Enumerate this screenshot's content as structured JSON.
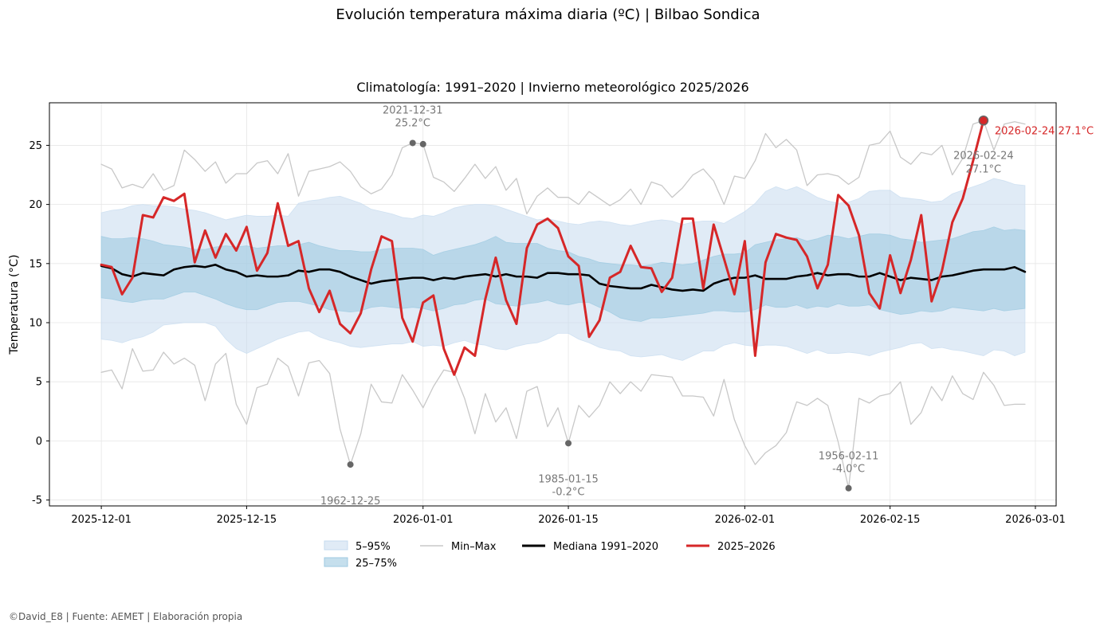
{
  "suptitle": "Evolución temperatura máxima diaria (ºC) | Bilbao Sondica",
  "footer": "©David_E8 | Fuente: AEMET | Elaboración propia",
  "colors": {
    "band_5_95": "#c6dbef",
    "band_25_75": "#9ecae1",
    "minmax": "#c8c8c8",
    "median": "#000000",
    "current": "#d62728",
    "record": "#666666",
    "record_text": "#777777"
  },
  "chart_data": {
    "type": "line",
    "title": "Climatología: 1991–2020 | Invierno meteorológico 2025/2026",
    "xlabel": "",
    "ylabel": "Temperatura (°C)",
    "x_start": "2025-12-01",
    "x_end": "2026-02-28",
    "xlim": [
      "2025-11-26",
      "2026-03-03"
    ],
    "ylim": [
      -5.5,
      28.6
    ],
    "yticks": [
      -5,
      0,
      5,
      10,
      15,
      20,
      25
    ],
    "xticks": [
      "2025-12-01",
      "2025-12-15",
      "2026-01-01",
      "2026-01-15",
      "2026-02-01",
      "2026-02-15",
      "2026-03-01"
    ],
    "grid": true,
    "legend_position": "bottom-center",
    "legend": [
      {
        "label": "5–95%",
        "kind": "band",
        "color": "#c6dbef"
      },
      {
        "label": "25–75%",
        "kind": "band",
        "color": "#9ecae1"
      },
      {
        "label": "Min–Max",
        "kind": "line",
        "color": "#c8c8c8"
      },
      {
        "label": "Mediana 1991–2020",
        "kind": "line",
        "color": "#000000"
      },
      {
        "label": "2025–2026",
        "kind": "line",
        "color": "#d62728"
      }
    ],
    "series": {
      "max": [
        23.4,
        23.0,
        21.4,
        21.7,
        21.4,
        22.6,
        21.2,
        21.6,
        24.6,
        23.8,
        22.8,
        23.6,
        21.8,
        22.6,
        22.6,
        23.5,
        23.7,
        22.6,
        24.3,
        20.7,
        22.8,
        23.0,
        23.2,
        23.6,
        22.8,
        21.5,
        20.9,
        21.3,
        22.5,
        24.8,
        25.2,
        25.1,
        22.3,
        21.9,
        21.1,
        22.2,
        23.4,
        22.2,
        23.2,
        21.2,
        22.2,
        19.2,
        20.7,
        21.4,
        20.6,
        20.6,
        20.0,
        21.1,
        20.5,
        19.9,
        20.4,
        21.3,
        20.0,
        21.9,
        21.6,
        20.6,
        21.4,
        22.5,
        23.0,
        22.0,
        20.0,
        22.4,
        22.2,
        23.7,
        26.0,
        24.8,
        25.5,
        24.6,
        21.6,
        22.5,
        22.6,
        22.4,
        21.7,
        22.3,
        25.0,
        25.2,
        26.2,
        24.0,
        23.4,
        24.4,
        24.2,
        25.0,
        22.5,
        23.9,
        26.8,
        27.1,
        24.6,
        26.8,
        27.0,
        26.8
      ],
      "p95": [
        19.3,
        19.5,
        19.6,
        19.9,
        20.0,
        19.9,
        19.9,
        19.8,
        19.6,
        19.5,
        19.3,
        19.0,
        18.7,
        18.9,
        19.1,
        19.0,
        19.0,
        19.1,
        19.0,
        20.1,
        20.3,
        20.4,
        20.6,
        20.7,
        20.4,
        20.1,
        19.6,
        19.4,
        19.2,
        18.9,
        18.8,
        19.1,
        19.0,
        19.3,
        19.7,
        19.9,
        20.0,
        20.0,
        19.9,
        19.6,
        19.3,
        19.0,
        18.7,
        18.8,
        18.6,
        18.4,
        18.3,
        18.5,
        18.6,
        18.5,
        18.3,
        18.2,
        18.4,
        18.6,
        18.7,
        18.6,
        18.3,
        18.5,
        18.6,
        18.6,
        18.4,
        18.9,
        19.4,
        20.1,
        21.1,
        21.5,
        21.2,
        21.5,
        21.1,
        20.6,
        20.3,
        20.1,
        20.2,
        20.5,
        21.1,
        21.2,
        21.2,
        20.6,
        20.5,
        20.4,
        20.2,
        20.3,
        20.9,
        21.2,
        21.5,
        21.8,
        22.2,
        22.0,
        21.7,
        21.6
      ],
      "p75": [
        17.3,
        17.1,
        17.1,
        17.2,
        17.1,
        16.9,
        16.6,
        16.5,
        16.4,
        16.2,
        16.2,
        16.4,
        16.5,
        16.4,
        16.5,
        16.3,
        16.4,
        16.5,
        16.5,
        16.6,
        16.8,
        16.5,
        16.3,
        16.1,
        16.1,
        16.0,
        16.0,
        16.2,
        16.3,
        16.3,
        16.3,
        16.2,
        15.7,
        16.0,
        16.2,
        16.4,
        16.6,
        16.9,
        17.3,
        16.8,
        16.7,
        16.7,
        16.7,
        16.3,
        16.1,
        16.0,
        15.6,
        15.4,
        15.1,
        15.0,
        14.9,
        14.9,
        14.8,
        14.9,
        15.1,
        15.0,
        14.9,
        15.0,
        15.3,
        15.6,
        15.8,
        15.8,
        15.9,
        16.6,
        16.8,
        17.0,
        17.1,
        17.2,
        16.9,
        17.1,
        17.4,
        17.3,
        17.1,
        17.3,
        17.5,
        17.5,
        17.4,
        17.1,
        17.0,
        16.8,
        16.9,
        17.0,
        17.1,
        17.4,
        17.7,
        17.8,
        18.1,
        17.8,
        17.9,
        17.8
      ],
      "median": [
        14.8,
        14.6,
        14.1,
        13.9,
        14.2,
        14.1,
        14.0,
        14.5,
        14.7,
        14.8,
        14.7,
        14.9,
        14.5,
        14.3,
        13.9,
        14.0,
        13.9,
        13.9,
        14.0,
        14.4,
        14.3,
        14.5,
        14.5,
        14.3,
        13.9,
        13.6,
        13.3,
        13.5,
        13.6,
        13.7,
        13.8,
        13.8,
        13.6,
        13.8,
        13.7,
        13.9,
        14.0,
        14.1,
        13.9,
        14.1,
        13.9,
        13.9,
        13.8,
        14.2,
        14.2,
        14.1,
        14.1,
        14.0,
        13.3,
        13.1,
        13.0,
        12.9,
        12.9,
        13.2,
        13.0,
        12.8,
        12.7,
        12.8,
        12.7,
        13.3,
        13.6,
        13.8,
        13.8,
        14.0,
        13.7,
        13.7,
        13.7,
        13.9,
        14.0,
        14.2,
        14.0,
        14.1,
        14.1,
        13.9,
        13.9,
        14.2,
        13.9,
        13.6,
        13.8,
        13.7,
        13.6,
        13.9,
        14.0,
        14.2,
        14.4,
        14.5,
        14.5,
        14.5,
        14.7,
        14.3
      ],
      "p25": [
        12.1,
        12.0,
        11.8,
        11.7,
        11.9,
        12.0,
        12.0,
        12.3,
        12.6,
        12.6,
        12.3,
        12.0,
        11.6,
        11.3,
        11.1,
        11.1,
        11.4,
        11.7,
        11.8,
        11.8,
        11.6,
        11.4,
        11.1,
        11.0,
        10.9,
        11.0,
        11.3,
        11.4,
        11.3,
        11.2,
        11.3,
        11.2,
        11.0,
        11.2,
        11.5,
        11.6,
        11.9,
        12.0,
        11.6,
        11.5,
        11.4,
        11.6,
        11.7,
        11.9,
        11.6,
        11.5,
        11.7,
        11.7,
        11.3,
        10.9,
        10.4,
        10.2,
        10.1,
        10.4,
        10.4,
        10.5,
        10.6,
        10.7,
        10.8,
        11.0,
        11.0,
        10.9,
        10.9,
        11.1,
        11.5,
        11.3,
        11.3,
        11.5,
        11.2,
        11.4,
        11.3,
        11.6,
        11.4,
        11.4,
        11.5,
        11.1,
        10.9,
        10.7,
        10.8,
        11.0,
        10.9,
        11.0,
        11.3,
        11.2,
        11.1,
        11.0,
        11.2,
        11.0,
        11.1,
        11.2
      ],
      "p5": [
        8.6,
        8.5,
        8.3,
        8.6,
        8.8,
        9.2,
        9.8,
        9.9,
        10.0,
        10.0,
        10.0,
        9.7,
        8.6,
        7.8,
        7.4,
        7.8,
        8.2,
        8.6,
        8.9,
        9.2,
        9.3,
        8.8,
        8.5,
        8.3,
        8.0,
        7.9,
        8.0,
        8.1,
        8.2,
        8.2,
        8.4,
        8.0,
        8.1,
        8.0,
        8.3,
        8.5,
        8.2,
        8.1,
        7.8,
        7.7,
        8.0,
        8.2,
        8.3,
        8.6,
        9.1,
        9.1,
        8.6,
        8.3,
        7.9,
        7.7,
        7.6,
        7.2,
        7.1,
        7.2,
        7.3,
        7.0,
        6.8,
        7.2,
        7.6,
        7.6,
        8.1,
        8.3,
        8.1,
        8.0,
        8.1,
        8.1,
        8.0,
        7.7,
        7.4,
        7.7,
        7.4,
        7.4,
        7.5,
        7.4,
        7.2,
        7.5,
        7.7,
        7.9,
        8.2,
        8.3,
        7.8,
        7.9,
        7.7,
        7.6,
        7.4,
        7.2,
        7.7,
        7.6,
        7.2,
        7.5
      ],
      "min": [
        5.8,
        6.0,
        4.4,
        7.8,
        5.9,
        6.0,
        7.5,
        6.5,
        7.0,
        6.4,
        3.4,
        6.5,
        7.4,
        3.1,
        1.4,
        4.5,
        4.8,
        7.0,
        6.3,
        3.8,
        6.6,
        6.8,
        5.7,
        1.0,
        -2.0,
        0.6,
        4.8,
        3.3,
        3.2,
        5.6,
        4.3,
        2.8,
        4.6,
        6.0,
        5.8,
        3.6,
        0.6,
        4.0,
        1.6,
        2.8,
        0.2,
        4.2,
        4.6,
        1.2,
        2.8,
        -0.2,
        3.0,
        2.0,
        3.0,
        5.0,
        4.0,
        5.0,
        4.2,
        5.6,
        5.5,
        5.4,
        3.8,
        3.8,
        3.7,
        2.1,
        5.2,
        1.8,
        -0.4,
        -2.0,
        -1.0,
        -0.4,
        0.7,
        3.3,
        3.0,
        3.6,
        3.0,
        -0.1,
        -4.0,
        3.6,
        3.2,
        3.8,
        4.0,
        5.0,
        1.4,
        2.4,
        4.6,
        3.4,
        5.5,
        4.0,
        3.5,
        5.8,
        4.7,
        3.0,
        3.1,
        3.1
      ],
      "current": [
        14.9,
        14.7,
        12.4,
        13.8,
        19.1,
        18.9,
        20.6,
        20.3,
        20.9,
        15.1,
        17.8,
        15.5,
        17.5,
        16.1,
        18.1,
        14.4,
        15.9,
        20.1,
        16.5,
        16.9,
        12.9,
        10.9,
        12.7,
        9.9,
        9.1,
        10.8,
        14.5,
        17.3,
        16.9,
        10.4,
        8.4,
        11.7,
        12.3,
        7.8,
        5.6,
        7.9,
        7.2,
        12.0,
        15.5,
        11.9,
        9.9,
        16.3,
        18.3,
        18.8,
        18.0,
        15.6,
        14.8,
        8.8,
        10.2,
        13.8,
        14.3,
        16.5,
        14.7,
        14.6,
        12.6,
        13.8,
        18.8,
        18.8,
        12.9,
        18.3,
        15.4,
        12.4,
        16.9,
        7.2,
        15.1,
        17.5,
        17.2,
        17.0,
        15.6,
        12.9,
        14.9,
        20.8,
        19.9,
        17.4,
        12.5,
        11.2,
        15.7,
        12.5,
        15.3,
        19.1,
        11.8,
        14.4,
        18.5,
        20.5,
        23.7,
        27.1
      ]
    },
    "record_max": [
      {
        "date": "2021-12-31",
        "value": "25.2°C",
        "y": 25.2,
        "day_index": 30.0,
        "label_pos": "above"
      },
      {
        "date": "",
        "value": "",
        "y": 25.1,
        "day_index": 31.0,
        "label_pos": "none"
      }
    ],
    "record_min": [
      {
        "date": "1962-12-25",
        "value": "",
        "y": -2.0,
        "day_index": 24.0,
        "label_pos": "below"
      },
      {
        "date": "1985-01-15",
        "value": "-0.2°C",
        "y": -0.2,
        "day_index": 45.0,
        "label_pos": "below"
      },
      {
        "date": "1956-02-11",
        "value": "-4.0°C",
        "y": -4.0,
        "day_index": 72.0,
        "label_pos": "above"
      }
    ],
    "current_record_label": {
      "date": "2026-02-24",
      "value": "27.1°C"
    },
    "current_last": {
      "label": "2026-02-24  27.1°C",
      "y": 27.1,
      "day_index": 85.0
    }
  }
}
